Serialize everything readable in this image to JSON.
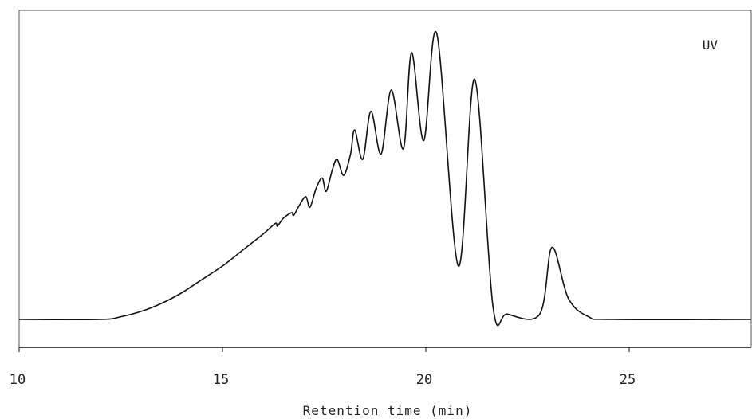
{
  "chart_data": {
    "type": "line",
    "title": "",
    "xlabel": "Retention time (min)",
    "ylabel": "",
    "xlim": [
      10,
      28
    ],
    "ylim": [
      0,
      1
    ],
    "grid": false,
    "x_ticks": [
      10,
      15,
      20,
      25
    ],
    "x_tick_labels": [
      "10",
      "15",
      "20",
      "25"
    ],
    "annotations": [
      {
        "text": "UV",
        "position": "top-right"
      }
    ],
    "series": [
      {
        "x": [
          10.0,
          12.0,
          12.5,
          13.0,
          13.5,
          14.0,
          14.5,
          15.0,
          15.5,
          16.0,
          16.3,
          16.35,
          16.5,
          16.7,
          16.75,
          16.9,
          17.05,
          17.15,
          17.3,
          17.45,
          17.55,
          17.7,
          17.82,
          17.98,
          18.15,
          18.25,
          18.45,
          18.65,
          18.9,
          19.15,
          19.45,
          19.65,
          19.95,
          20.27,
          20.8,
          21.2,
          21.65,
          22.0,
          22.8,
          23.1,
          23.5,
          24.0,
          24.6,
          28.0
        ],
        "y": [
          0.0,
          0.0,
          0.01,
          0.03,
          0.06,
          0.1,
          0.15,
          0.2,
          0.26,
          0.32,
          0.36,
          0.35,
          0.38,
          0.4,
          0.39,
          0.43,
          0.46,
          0.42,
          0.49,
          0.53,
          0.48,
          0.56,
          0.6,
          0.54,
          0.62,
          0.71,
          0.6,
          0.78,
          0.62,
          0.86,
          0.64,
          1.0,
          0.67,
          1.07,
          0.2,
          0.9,
          0.05,
          0.02,
          0.02,
          0.27,
          0.08,
          0.01,
          0.0,
          0.0
        ]
      }
    ]
  }
}
